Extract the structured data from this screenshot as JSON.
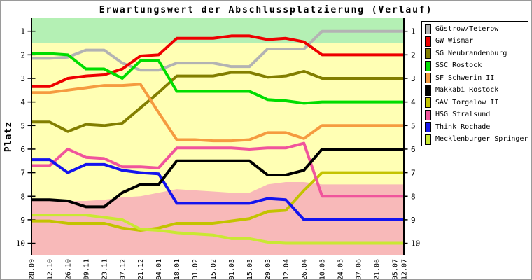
{
  "title": "Erwartungswert der Abschlussplatzierung (Verlauf)",
  "chart_data": {
    "type": "line",
    "title": "Erwartungswert der Abschlussplatzierung (Verlauf)",
    "xlabel": "",
    "ylabel": "Platz",
    "y_ticks": [
      1,
      2,
      3,
      4,
      5,
      6,
      7,
      8,
      9,
      10
    ],
    "y_inverted": true,
    "y_range": [
      0.45,
      10.5
    ],
    "grid": false,
    "legend_position": "right",
    "categories": [
      "28.09",
      "12.10",
      "26.10",
      "09.11",
      "23.11",
      "07.12",
      "21.12",
      "04.01",
      "18.01",
      "01.02",
      "15.02",
      "01.03",
      "15.03",
      "29.03",
      "12.04",
      "26.04",
      "10.05",
      "24.05",
      "07.06",
      "21.06",
      "05.07",
      "12.07"
    ],
    "x_days": [
      0,
      14,
      28,
      42,
      56,
      70,
      84,
      98,
      112,
      126,
      140,
      154,
      168,
      182,
      196,
      210,
      224,
      238,
      252,
      266,
      280,
      287
    ],
    "zones": {
      "green_until": 1.5,
      "pink_boundary": [
        8.2,
        8.2,
        8.2,
        8.2,
        8.15,
        8.05,
        8.0,
        7.85,
        7.7,
        7.75,
        7.8,
        7.85,
        7.85,
        7.5,
        7.4,
        7.4,
        7.5,
        7.5,
        7.5,
        7.5,
        7.5,
        7.5
      ],
      "colors": {
        "green": "#b4f0b4",
        "yellow": "#ffffb4",
        "pink": "#f8b9b9"
      }
    },
    "series": [
      {
        "name": "Güstrow/Teterow",
        "color": "#b3b3b3",
        "values": [
          2.15,
          2.15,
          2.1,
          1.8,
          1.8,
          2.35,
          2.65,
          2.65,
          2.35,
          2.35,
          2.35,
          2.5,
          2.5,
          1.75,
          1.75,
          1.75,
          1.0,
          1.0,
          1.0,
          1.0,
          1.0,
          1.0
        ]
      },
      {
        "name": "GW Wismar",
        "color": "#ee0000",
        "values": [
          3.35,
          3.35,
          3.0,
          2.9,
          2.85,
          2.6,
          2.05,
          2.0,
          1.3,
          1.3,
          1.3,
          1.2,
          1.2,
          1.35,
          1.3,
          1.45,
          2.0,
          2.0,
          2.0,
          2.0,
          2.0,
          2.0
        ]
      },
      {
        "name": "SG Neubrandenburg",
        "color": "#827e00",
        "values": [
          4.85,
          4.85,
          5.25,
          4.95,
          5.0,
          4.9,
          4.25,
          3.6,
          2.9,
          2.9,
          2.9,
          2.75,
          2.75,
          2.95,
          2.9,
          2.7,
          3.0,
          3.0,
          3.0,
          3.0,
          3.0,
          3.0
        ]
      },
      {
        "name": "SSC Rostock",
        "color": "#00dd00",
        "values": [
          1.95,
          1.95,
          2.0,
          2.6,
          2.6,
          3.0,
          2.25,
          2.25,
          3.55,
          3.55,
          3.55,
          3.55,
          3.55,
          3.9,
          3.95,
          4.05,
          4.0,
          4.0,
          4.0,
          4.0,
          4.0,
          4.0
        ]
      },
      {
        "name": "SF Schwerin II",
        "color": "#f59b40",
        "values": [
          3.6,
          3.6,
          3.5,
          3.4,
          3.3,
          3.3,
          3.25,
          4.45,
          5.6,
          5.6,
          5.65,
          5.65,
          5.6,
          5.3,
          5.3,
          5.55,
          5.0,
          5.0,
          5.0,
          5.0,
          5.0,
          5.0
        ]
      },
      {
        "name": "Makkabi Rostock",
        "color": "#000000",
        "values": [
          8.15,
          8.15,
          8.2,
          8.45,
          8.45,
          7.85,
          7.5,
          7.5,
          6.5,
          6.5,
          6.5,
          6.5,
          6.5,
          7.1,
          7.1,
          6.9,
          6.0,
          6.0,
          6.0,
          6.0,
          6.0,
          6.0
        ]
      },
      {
        "name": "SAV Torgelow II",
        "color": "#c3c300",
        "values": [
          9.05,
          9.05,
          9.15,
          9.15,
          9.15,
          9.35,
          9.45,
          9.35,
          9.15,
          9.15,
          9.15,
          9.05,
          8.95,
          8.65,
          8.6,
          7.75,
          7.0,
          7.0,
          7.0,
          7.0,
          7.0,
          7.0
        ]
      },
      {
        "name": "HSG Stralsund",
        "color": "#f0549c",
        "values": [
          6.7,
          6.7,
          6.0,
          6.35,
          6.4,
          6.75,
          6.75,
          6.8,
          5.95,
          5.95,
          5.95,
          5.95,
          6.0,
          5.95,
          5.95,
          5.75,
          8.0,
          8.0,
          8.0,
          8.0,
          8.0,
          8.0
        ]
      },
      {
        "name": "Think Rochade",
        "color": "#1414ee",
        "values": [
          6.45,
          6.45,
          7.0,
          6.65,
          6.65,
          6.9,
          7.0,
          7.05,
          8.3,
          8.3,
          8.3,
          8.3,
          8.3,
          8.1,
          8.15,
          9.0,
          9.0,
          9.0,
          9.0,
          9.0,
          9.0,
          9.0
        ]
      },
      {
        "name": "Mecklenburger Springer",
        "color": "#c9e832",
        "values": [
          8.8,
          8.8,
          8.8,
          8.8,
          8.9,
          9.0,
          9.4,
          9.45,
          9.55,
          9.6,
          9.65,
          9.8,
          9.8,
          9.95,
          10.0,
          10.0,
          10.0,
          10.0,
          10.0,
          10.0,
          10.0,
          10.0
        ]
      }
    ]
  }
}
